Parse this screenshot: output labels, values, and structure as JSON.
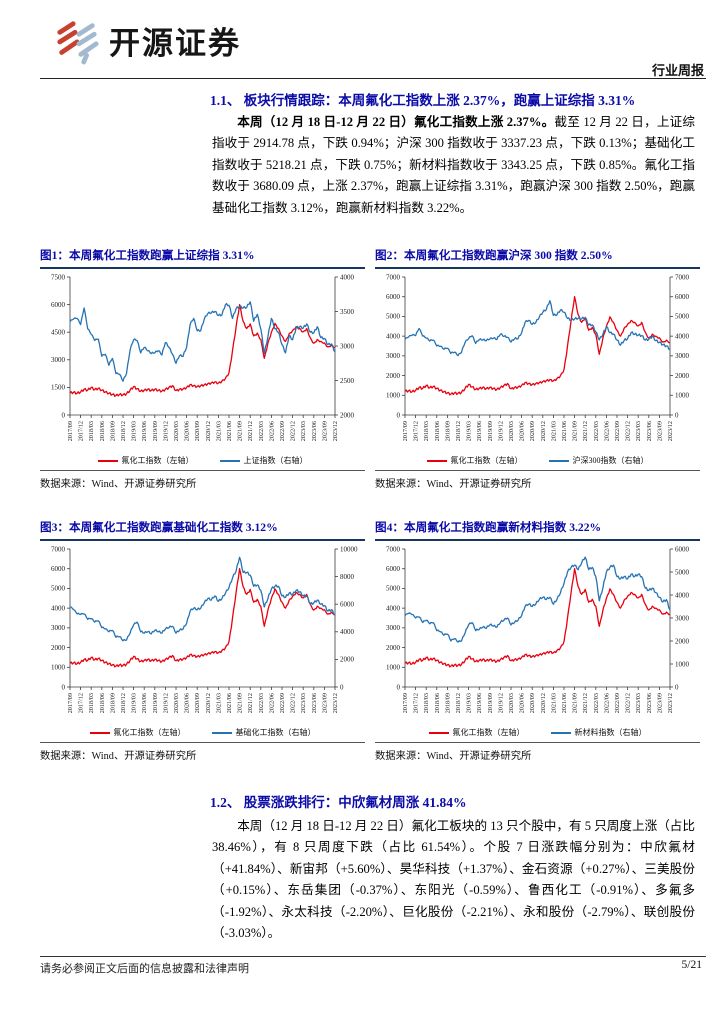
{
  "header": {
    "brand": "开源证券",
    "doc_type": "行业周报"
  },
  "colors": {
    "heading_navy": "#0b0ba8",
    "chart_title_rule": "#17375e",
    "chart_red": "#e8000f",
    "chart_blue": "#2673b4",
    "logo_red": "#c8402e",
    "logo_blue": "#a3b9cd"
  },
  "section1": {
    "title": "1.1、 板块行情跟踪：本周氟化工指数上涨 2.37%，跑赢上证综指 3.31%",
    "para_bold": "本周（12 月 18 日-12 月 22 日）氟化工指数上涨 2.37%。",
    "para_rest": "截至 12 月 22 日，上证综指收于 2914.78 点，下跌 0.94%；沪深 300 指数收于 3337.23 点，下跌 0.13%；基础化工指数收于 5218.21 点，下跌 0.75%；新材料指数收于 3343.25 点，下跌 0.85%。氟化工指数收于 3680.09 点，上涨 2.37%，跑赢上证综指 3.31%，跑赢沪深 300 指数 2.50%，跑赢基础化工指数 3.12%，跑赢新材料指数 3.22%。"
  },
  "section2": {
    "title": "1.2、 股票涨跌排行：中欣氟材周涨 41.84%",
    "para": "本周（12 月 18 日-12 月 22 日）氟化工板块的 13 只个股中，有 5 只周度上涨（占比 38.46%），有 8 只周度下跌（占比 61.54%）。个股 7 日涨跌幅分别为：中欣氟材（+41.84%）、新宙邦（+5.60%）、昊华科技（+1.37%）、金石资源（+0.27%）、三美股份（+0.15%）、东岳集团（-0.37%）、东阳光（-0.59%）、鲁西化工（-0.91%）、多氟多（-1.92%）、永太科技（-2.20%）、巨化股份（-2.21%）、永和股份（-2.79%）、联创股份（-3.03%）。"
  },
  "footer": {
    "disclaimer": "请务必参阅正文后面的信息披露和法律声明",
    "page": "5/21"
  },
  "chart_data": [
    {
      "type": "line",
      "title": "图1：本周氟化工指数跑赢上证综指 3.31%",
      "source": "数据来源：Wind、开源证券研究所",
      "legend_position": "bottom",
      "grid": false,
      "x_labels": [
        "2017/09",
        "2017/12",
        "2018/03",
        "2018/06",
        "2018/09",
        "2018/12",
        "2019/03",
        "2019/06",
        "2019/09",
        "2019/12",
        "2020/03",
        "2020/06",
        "2020/09",
        "2020/12",
        "2021/03",
        "2021/06",
        "2021/09",
        "2021/12",
        "2022/03",
        "2022/06",
        "2022/09",
        "2022/12",
        "2023/03",
        "2023/06",
        "2023/09",
        "2023/12"
      ],
      "left_axis": {
        "min": 0,
        "max": 7500,
        "ticks": [
          0,
          1500,
          3000,
          4500,
          6000,
          7500
        ]
      },
      "right_axis": {
        "min": 2000,
        "max": 4000,
        "ticks": [
          2000,
          2500,
          3000,
          3500,
          4000
        ]
      },
      "series": [
        {
          "name": "氟化工指数（左轴）",
          "axis": "left",
          "color": "#e8000f",
          "values": [
            1200,
            1230,
            1180,
            1250,
            1400,
            1350,
            1500,
            1380,
            1450,
            1350,
            1250,
            1180,
            1120,
            1060,
            1120,
            1100,
            1150,
            1350,
            1550,
            1430,
            1300,
            1350,
            1400,
            1340,
            1400,
            1350,
            1300,
            1400,
            1500,
            1600,
            1330,
            1400,
            1420,
            1500,
            1650,
            1600,
            1550,
            1600,
            1650,
            1700,
            1750,
            1800,
            1740,
            1850,
            2000,
            2300,
            3500,
            4800,
            6000,
            5100,
            4700,
            4950,
            4300,
            4450,
            4100,
            3080,
            3900,
            4500,
            4980,
            4700,
            4300,
            4000,
            4400,
            4600,
            4800,
            4700,
            4520,
            4700,
            4200,
            3900,
            4100,
            4000,
            3920,
            3700,
            3800,
            3680
          ]
        },
        {
          "name": "上证指数（右轴）",
          "axis": "right",
          "color": "#2673b4",
          "values": [
            3350,
            3390,
            3400,
            3310,
            3550,
            3250,
            3170,
            3080,
            3100,
            2850,
            2880,
            2720,
            2820,
            2600,
            2590,
            2490,
            2600,
            2940,
            3090,
            3080,
            2900,
            2980,
            2930,
            2890,
            2900,
            2930,
            2870,
            3050,
            2980,
            2880,
            2750,
            2860,
            2850,
            2980,
            3310,
            3400,
            3220,
            3220,
            3390,
            3470,
            3480,
            3500,
            3440,
            3450,
            3600,
            3590,
            3400,
            3540,
            3570,
            3550,
            3560,
            3640,
            3360,
            3460,
            3250,
            2890,
            3130,
            3400,
            3250,
            3200,
            3020,
            2900,
            3150,
            3090,
            3260,
            3280,
            3260,
            3320,
            3200,
            3190,
            3280,
            3120,
            3110,
            3020,
            3030,
            2915
          ]
        }
      ]
    },
    {
      "type": "line",
      "title": "图2：本周氟化工指数跑赢沪深 300 指数 2.50%",
      "source": "数据来源：Wind、开源证券研究所",
      "legend_position": "bottom",
      "grid": false,
      "x_labels": [
        "2017/09",
        "2017/12",
        "2018/03",
        "2018/06",
        "2018/09",
        "2018/12",
        "2019/03",
        "2019/06",
        "2019/09",
        "2019/12",
        "2020/03",
        "2020/06",
        "2020/09",
        "2020/12",
        "2021/03",
        "2021/06",
        "2021/09",
        "2021/12",
        "2022/03",
        "2022/06",
        "2022/09",
        "2022/12",
        "2023/03",
        "2023/06",
        "2023/09",
        "2023/12"
      ],
      "left_axis": {
        "min": 0,
        "max": 7000,
        "ticks": [
          0,
          1000,
          2000,
          3000,
          4000,
          5000,
          6000,
          7000
        ]
      },
      "right_axis": {
        "min": 0,
        "max": 7000,
        "ticks": [
          0,
          1000,
          2000,
          3000,
          4000,
          5000,
          6000,
          7000
        ]
      },
      "series": [
        {
          "name": "氟化工指数（左轴）",
          "axis": "left",
          "color": "#e8000f",
          "values": [
            1200,
            1230,
            1180,
            1250,
            1400,
            1350,
            1500,
            1380,
            1450,
            1350,
            1250,
            1180,
            1120,
            1060,
            1120,
            1100,
            1150,
            1350,
            1550,
            1430,
            1300,
            1350,
            1400,
            1340,
            1400,
            1350,
            1300,
            1400,
            1500,
            1600,
            1330,
            1400,
            1420,
            1500,
            1650,
            1600,
            1550,
            1600,
            1650,
            1700,
            1750,
            1800,
            1740,
            1850,
            2000,
            2300,
            3500,
            4800,
            6000,
            5100,
            4700,
            4950,
            4300,
            4450,
            4100,
            3080,
            3900,
            4500,
            4980,
            4700,
            4300,
            4000,
            4400,
            4600,
            4800,
            4700,
            4520,
            4700,
            4200,
            3900,
            4100,
            4000,
            3920,
            3700,
            3800,
            3680
          ]
        },
        {
          "name": "沪深300指数（右轴）",
          "axis": "right",
          "color": "#2673b4",
          "values": [
            3830,
            3950,
            4050,
            4030,
            4390,
            4000,
            3900,
            3750,
            3800,
            3500,
            3480,
            3330,
            3390,
            3120,
            3180,
            3010,
            3180,
            3680,
            3870,
            4020,
            3630,
            3820,
            3800,
            3770,
            3850,
            3890,
            3830,
            4100,
            3980,
            3940,
            3700,
            3860,
            3870,
            4160,
            4700,
            4800,
            4590,
            4680,
            4960,
            5210,
            5350,
            5800,
            5050,
            5080,
            5320,
            5220,
            4900,
            4800,
            4870,
            4900,
            4880,
            4940,
            4560,
            4570,
            4220,
            3810,
            4090,
            4480,
            4170,
            4110,
            3800,
            3540,
            3780,
            3870,
            4180,
            4100,
            4050,
            4030,
            3800,
            3840,
            3990,
            3770,
            3690,
            3560,
            3500,
            3337
          ]
        }
      ]
    },
    {
      "type": "line",
      "title": "图3：本周氟化工指数跑赢基础化工指数 3.12%",
      "source": "数据来源：Wind、开源证券研究所",
      "legend_position": "bottom",
      "grid": false,
      "x_labels": [
        "2017/09",
        "2017/12",
        "2018/03",
        "2018/06",
        "2018/09",
        "2018/12",
        "2019/03",
        "2019/06",
        "2019/09",
        "2019/12",
        "2020/03",
        "2020/06",
        "2020/09",
        "2020/12",
        "2021/03",
        "2021/06",
        "2021/09",
        "2021/12",
        "2022/03",
        "2022/06",
        "2022/09",
        "2022/12",
        "2023/03",
        "2023/06",
        "2023/09",
        "2023/12"
      ],
      "left_axis": {
        "min": 0,
        "max": 7000,
        "ticks": [
          0,
          1000,
          2000,
          3000,
          4000,
          5000,
          6000,
          7000
        ]
      },
      "right_axis": {
        "min": 0,
        "max": 10000,
        "ticks": [
          0,
          2000,
          4000,
          6000,
          8000,
          10000
        ]
      },
      "series": [
        {
          "name": "氟化工指数（左轴）",
          "axis": "left",
          "color": "#e8000f",
          "values": [
            1200,
            1230,
            1180,
            1250,
            1400,
            1350,
            1500,
            1380,
            1450,
            1350,
            1250,
            1180,
            1120,
            1060,
            1120,
            1100,
            1150,
            1350,
            1550,
            1430,
            1300,
            1350,
            1400,
            1340,
            1400,
            1350,
            1300,
            1400,
            1500,
            1600,
            1330,
            1400,
            1420,
            1500,
            1650,
            1600,
            1550,
            1600,
            1650,
            1700,
            1750,
            1800,
            1740,
            1850,
            2000,
            2300,
            3500,
            4800,
            6000,
            5100,
            4700,
            4950,
            4300,
            4450,
            4100,
            3080,
            3900,
            4500,
            4980,
            4700,
            4300,
            4000,
            4400,
            4600,
            4800,
            4700,
            4520,
            4700,
            4200,
            3900,
            4100,
            4000,
            3920,
            3700,
            3800,
            3680
          ]
        },
        {
          "name": "基础化工指数（右轴）",
          "axis": "right",
          "color": "#2673b4",
          "values": [
            5800,
            5600,
            5300,
            5250,
            5300,
            4900,
            4950,
            4700,
            4800,
            4300,
            4200,
            4000,
            4100,
            3600,
            3650,
            3350,
            3400,
            3900,
            4500,
            4700,
            4000,
            3900,
            4000,
            3850,
            4100,
            4000,
            3900,
            4200,
            4300,
            4400,
            3900,
            4100,
            4200,
            4600,
            5500,
            5700,
            5600,
            5700,
            6100,
            6400,
            6300,
            6600,
            6200,
            6400,
            6800,
            7200,
            7900,
            8400,
            9400,
            8300,
            8300,
            8100,
            7300,
            7400,
            7000,
            5800,
            6400,
            7100,
            7300,
            7300,
            6600,
            6500,
            6800,
            6700,
            7000,
            6900,
            6600,
            6600,
            6000,
            6100,
            6300,
            6000,
            5900,
            5500,
            5600,
            5218
          ]
        }
      ]
    },
    {
      "type": "line",
      "title": "图4：本周氟化工指数跑赢新材料指数 3.22%",
      "source": "数据来源：Wind、开源证券研究所",
      "legend_position": "bottom",
      "grid": false,
      "x_labels": [
        "2017/09",
        "2017/12",
        "2018/03",
        "2018/06",
        "2018/09",
        "2018/12",
        "2019/03",
        "2019/06",
        "2019/09",
        "2019/12",
        "2020/03",
        "2020/06",
        "2020/09",
        "2020/12",
        "2021/03",
        "2021/06",
        "2021/09",
        "2021/12",
        "2022/03",
        "2022/06",
        "2022/09",
        "2022/12",
        "2023/03",
        "2023/06",
        "2023/09",
        "2023/12"
      ],
      "left_axis": {
        "min": 0,
        "max": 7000,
        "ticks": [
          0,
          1000,
          2000,
          3000,
          4000,
          5000,
          6000,
          7000
        ]
      },
      "right_axis": {
        "min": 0,
        "max": 6000,
        "ticks": [
          0,
          1000,
          2000,
          3000,
          4000,
          5000,
          6000
        ]
      },
      "series": [
        {
          "name": "氟化工指数（左轴）",
          "axis": "left",
          "color": "#e8000f",
          "values": [
            1200,
            1230,
            1180,
            1250,
            1400,
            1350,
            1500,
            1380,
            1450,
            1350,
            1250,
            1180,
            1120,
            1060,
            1120,
            1100,
            1150,
            1350,
            1550,
            1430,
            1300,
            1350,
            1400,
            1340,
            1400,
            1350,
            1300,
            1400,
            1500,
            1600,
            1330,
            1400,
            1420,
            1500,
            1650,
            1600,
            1550,
            1600,
            1650,
            1700,
            1750,
            1800,
            1740,
            1850,
            2000,
            2300,
            3500,
            4800,
            6000,
            5100,
            4700,
            4950,
            4300,
            4450,
            4100,
            3080,
            3900,
            4500,
            4980,
            4700,
            4300,
            4000,
            4400,
            4600,
            4800,
            4700,
            4520,
            4700,
            4200,
            3900,
            4100,
            4000,
            3920,
            3700,
            3800,
            3680
          ]
        },
        {
          "name": "新材料指数（右轴）",
          "axis": "right",
          "color": "#2673b4",
          "values": [
            3100,
            3200,
            3150,
            3000,
            3050,
            2800,
            2900,
            2750,
            2800,
            2450,
            2400,
            2250,
            2300,
            2000,
            2100,
            1950,
            2000,
            2350,
            2700,
            2800,
            2450,
            2500,
            2600,
            2550,
            2700,
            2650,
            2600,
            2800,
            2900,
            3000,
            2700,
            2800,
            2900,
            3100,
            3500,
            3600,
            3500,
            3600,
            3800,
            3900,
            3800,
            3900,
            3600,
            3800,
            4100,
            4500,
            5000,
            5200,
            5300,
            5100,
            5400,
            5650,
            5100,
            5200,
            4800,
            3750,
            4300,
            5000,
            5200,
            5300,
            4800,
            4700,
            4800,
            4700,
            4900,
            4800,
            4900,
            4800,
            4300,
            4200,
            4300,
            4100,
            3900,
            3700,
            3800,
            3343
          ]
        }
      ]
    }
  ]
}
